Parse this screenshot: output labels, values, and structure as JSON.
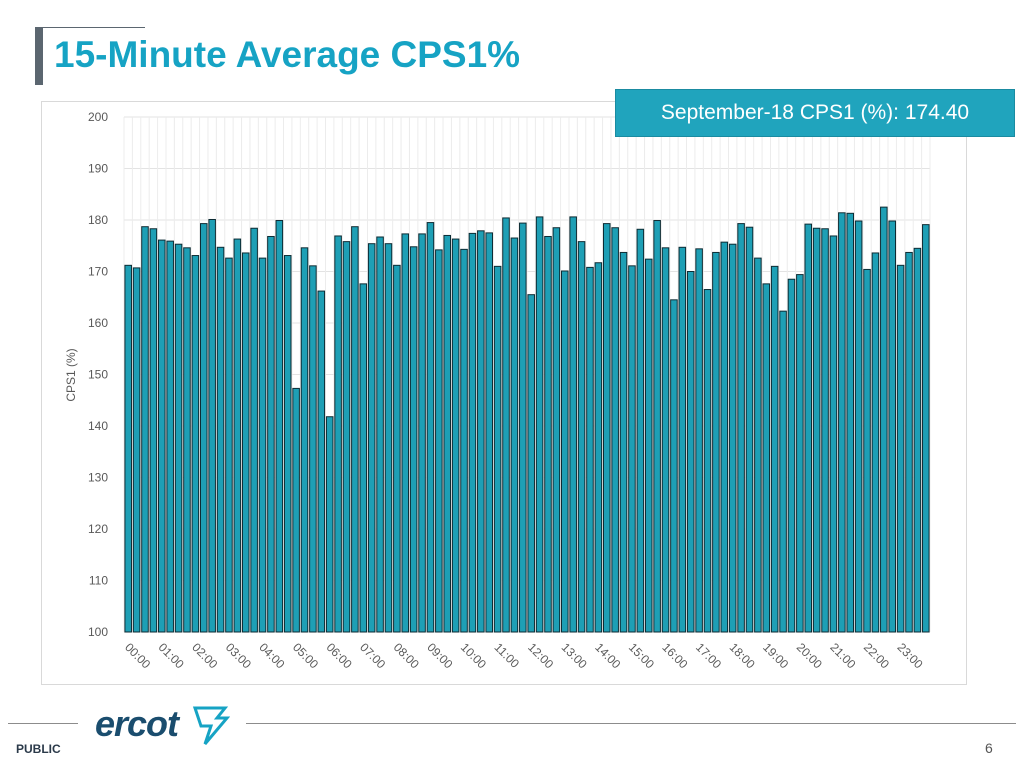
{
  "slide": {
    "title": "15-Minute Average CPS1%",
    "callout": "September-18 CPS1 (%): 174.40",
    "footer_label": "PUBLIC",
    "page_number": "6",
    "logo_text": "ercot"
  },
  "colors": {
    "title": "#16a3c4",
    "bar": "#1e9fb5",
    "bar_stroke": "#0d2b33",
    "callout_bg": "#20a4bd"
  },
  "chart_data": {
    "type": "bar",
    "title": "",
    "xlabel": "",
    "ylabel": "CPS1 (%)",
    "ylim": [
      100,
      200
    ],
    "yticks": [
      100,
      110,
      120,
      130,
      140,
      150,
      160,
      170,
      180,
      190,
      200
    ],
    "grid": true,
    "xtick_labels": [
      "00:00",
      "01:00",
      "02:00",
      "03:00",
      "04:00",
      "05:00",
      "06:00",
      "07:00",
      "08:00",
      "09:00",
      "10:00",
      "11:00",
      "12:00",
      "13:00",
      "14:00",
      "15:00",
      "16:00",
      "17:00",
      "18:00",
      "19:00",
      "20:00",
      "21:00",
      "22:00",
      "23:00"
    ],
    "values": [
      171.2,
      170.7,
      178.7,
      178.3,
      176.1,
      175.9,
      175.3,
      174.6,
      173.1,
      179.3,
      180.1,
      174.7,
      172.6,
      176.3,
      173.6,
      178.4,
      172.6,
      176.8,
      179.9,
      173.1,
      147.3,
      174.6,
      171.1,
      166.2,
      141.8,
      176.9,
      175.8,
      178.7,
      167.6,
      175.4,
      176.7,
      175.4,
      171.2,
      177.3,
      174.8,
      177.3,
      179.5,
      174.2,
      177.0,
      176.3,
      174.3,
      177.4,
      177.9,
      177.5,
      171.0,
      180.4,
      176.5,
      179.4,
      165.5,
      180.6,
      176.8,
      178.5,
      170.1,
      180.6,
      175.8,
      170.8,
      171.7,
      179.3,
      178.5,
      173.7,
      171.1,
      178.2,
      172.4,
      179.9,
      174.6,
      164.5,
      174.7,
      170.0,
      174.4,
      166.5,
      173.7,
      175.7,
      175.3,
      179.3,
      178.6,
      172.6,
      167.6,
      171.0,
      162.3,
      168.5,
      169.4,
      179.2,
      178.4,
      178.3,
      176.9,
      181.4,
      181.3,
      179.8,
      170.4,
      173.6,
      182.5,
      179.8,
      171.2,
      173.7,
      174.5,
      179.1
    ]
  }
}
